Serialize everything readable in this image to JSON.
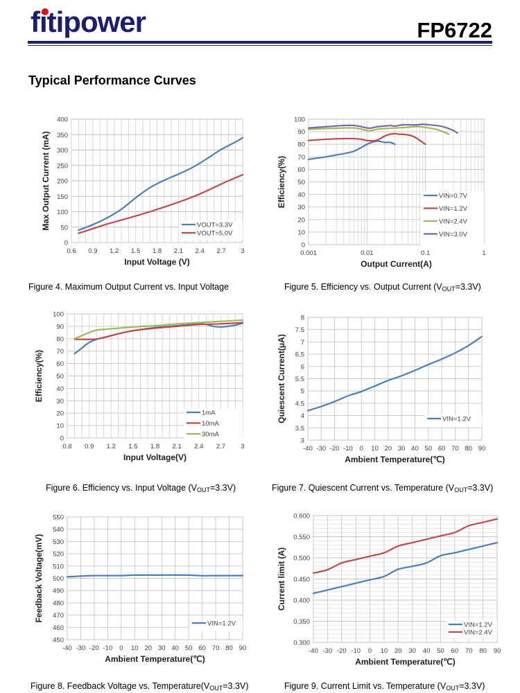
{
  "header": {
    "logo_text": "fitipower",
    "part_number": "FP6722",
    "brand_color": "#1a1e6e",
    "logo_dot_color": "#e0101a"
  },
  "section_title": "Typical Performance Curves",
  "captions": {
    "fig4": {
      "text": "Figure 4. Maximum Output Current vs. Input Voltage"
    },
    "fig5": {
      "pre": "Figure 5. Efficiency vs. Output Current (V",
      "sub": "OUT",
      "post": "=3.3V)"
    },
    "fig6": {
      "pre": "Figure 6. Efficiency vs. Input Voltage (V",
      "sub": "OUT",
      "post": "=3.3V)"
    },
    "fig7": {
      "pre": "Figure 7. Quiescent Current vs.  Temperature (V",
      "sub": "OUT",
      "post": "=3.3V)"
    },
    "fig8": {
      "pre": "Figure 8. Feedback Voltage  vs. Temperature(V",
      "sub": "OUT",
      "post": "=3.3V)"
    },
    "fig9": {
      "pre": "Figure 9. Current Limit vs. Temperature (V",
      "sub": "OUT",
      "post": "=3.3V)"
    }
  },
  "chart_data": [
    {
      "id": "fig4",
      "type": "line",
      "title": "Figure 4. Maximum Output Current vs. Input Voltage",
      "xlabel": "Input Voltage (V)",
      "ylabel": "Max Output Current (mA)",
      "xlim": [
        0.6,
        3.0
      ],
      "ylim": [
        0,
        400
      ],
      "xticks": [
        0.6,
        0.9,
        1.2,
        1.5,
        1.8,
        2.1,
        2.4,
        2.7,
        3.0
      ],
      "xtick_labels": [
        "0.6",
        "0.9",
        "1.2",
        "1.5",
        "1.8",
        "2.1",
        "2.4",
        "2.7",
        "3"
      ],
      "yticks": [
        0,
        50,
        100,
        150,
        200,
        250,
        300,
        350,
        400
      ],
      "xminor": 0.1,
      "grid": true,
      "legend": "bottom-right",
      "series": [
        {
          "name": "VOUT=3.3V",
          "color": "#4a7ebb",
          "x": [
            0.7,
            0.9,
            1.1,
            1.3,
            1.5,
            1.7,
            1.9,
            2.1,
            2.3,
            2.5,
            2.7,
            2.9,
            3.0
          ],
          "y": [
            40,
            58,
            80,
            108,
            145,
            178,
            202,
            222,
            244,
            272,
            302,
            326,
            340
          ]
        },
        {
          "name": "VOUT=5.0V",
          "color": "#be4b48",
          "x": [
            0.7,
            0.9,
            1.1,
            1.3,
            1.5,
            1.7,
            1.9,
            2.1,
            2.3,
            2.5,
            2.7,
            2.9,
            3.0
          ],
          "y": [
            30,
            45,
            60,
            73,
            86,
            100,
            115,
            131,
            148,
            168,
            190,
            210,
            220
          ]
        }
      ]
    },
    {
      "id": "fig5",
      "type": "line",
      "xscale": "log",
      "title": "Figure 5. Efficiency vs. Output Current (VOUT=3.3V)",
      "xlabel": "Output Current(A)",
      "ylabel": "Efficiency(%)",
      "xlim": [
        0.001,
        1
      ],
      "ylim": [
        0,
        100
      ],
      "xticks": [
        0.001,
        0.01,
        0.1,
        1
      ],
      "xtick_labels": [
        "0.001",
        "0.01",
        "0.1",
        "1"
      ],
      "yticks": [
        0,
        10,
        20,
        30,
        40,
        50,
        60,
        70,
        80,
        90,
        100
      ],
      "grid": true,
      "legend": "bottom-right",
      "series": [
        {
          "name": "VIN=0.7V",
          "color": "#4a7ebb",
          "x": [
            0.001,
            0.002,
            0.003,
            0.004,
            0.005,
            0.006,
            0.007,
            0.008,
            0.01,
            0.012,
            0.015,
            0.018,
            0.02,
            0.025,
            0.03
          ],
          "y": [
            68,
            70,
            71.5,
            72.5,
            73.5,
            74.5,
            76,
            77.5,
            80,
            81.5,
            82.5,
            82,
            81.5,
            81.5,
            80
          ]
        },
        {
          "name": "VIN=1.2V",
          "color": "#be4b48",
          "x": [
            0.001,
            0.002,
            0.004,
            0.006,
            0.008,
            0.01,
            0.013,
            0.016,
            0.02,
            0.025,
            0.03,
            0.035,
            0.04,
            0.05,
            0.06,
            0.07,
            0.08,
            0.1
          ],
          "y": [
            83,
            84,
            84.5,
            84.5,
            84,
            83,
            82.8,
            84,
            86.5,
            88,
            88.5,
            88,
            88,
            87.5,
            86.5,
            85,
            83,
            80
          ]
        },
        {
          "name": "VIN=2.4V",
          "color": "#9bbb59",
          "x": [
            0.001,
            0.002,
            0.004,
            0.006,
            0.008,
            0.01,
            0.012,
            0.015,
            0.02,
            0.03,
            0.05,
            0.06,
            0.08,
            0.1,
            0.15,
            0.2,
            0.25
          ],
          "y": [
            92,
            92.5,
            93,
            93,
            92,
            91,
            91,
            92,
            92.5,
            93,
            93.5,
            94,
            94,
            93.5,
            92,
            90,
            88
          ]
        },
        {
          "name": "VIN=3.0V",
          "color": "#8064a2",
          "x": [
            0.001,
            0.002,
            0.004,
            0.006,
            0.008,
            0.01,
            0.012,
            0.015,
            0.02,
            0.025,
            0.03,
            0.04,
            0.05,
            0.07,
            0.09,
            0.1,
            0.15,
            0.2,
            0.3,
            0.35
          ],
          "y": [
            93,
            94,
            95,
            95,
            94,
            93,
            93,
            94,
            94.5,
            95,
            94.5,
            95.5,
            95.5,
            95.5,
            96,
            95.8,
            95,
            94,
            91,
            89
          ]
        }
      ]
    },
    {
      "id": "fig6",
      "type": "line",
      "title": "Figure 6. Efficiency vs. Input Voltage (VOUT=3.3V)",
      "xlabel": "Input Voltage(V)",
      "ylabel": "Efficiency(%)",
      "xlim": [
        0.6,
        3.0
      ],
      "ylim": [
        0,
        100
      ],
      "xticks": [
        0.6,
        0.9,
        1.2,
        1.5,
        1.8,
        2.1,
        2.4,
        2.7,
        3.0
      ],
      "xtick_labels": [
        "0.6",
        "0.9",
        "1.2",
        "1.5",
        "1.8",
        "2.1",
        "2.4",
        "2.7",
        "3"
      ],
      "yticks": [
        0,
        10,
        20,
        30,
        40,
        50,
        60,
        70,
        80,
        90,
        100
      ],
      "xminor": 0.1,
      "grid": true,
      "legend": "bottom-right",
      "series": [
        {
          "name": "1mA",
          "color": "#4a7ebb",
          "x": [
            0.7,
            0.8,
            0.9,
            1.0,
            1.1,
            1.3,
            1.5,
            1.8,
            2.1,
            2.4,
            2.5,
            2.6,
            2.7,
            2.8,
            2.9,
            3.0
          ],
          "y": [
            68,
            72.5,
            77,
            79.5,
            81,
            84,
            86.5,
            89,
            90.5,
            92,
            91.5,
            90,
            89.5,
            90,
            91,
            92.5
          ]
        },
        {
          "name": "10mA",
          "color": "#be4b48",
          "x": [
            0.7,
            0.8,
            0.9,
            1.0,
            1.1,
            1.3,
            1.5,
            1.8,
            2.1,
            2.4,
            2.7,
            3.0
          ],
          "y": [
            79.5,
            79.5,
            79.5,
            79.8,
            81,
            84,
            86.5,
            88.5,
            90,
            91.5,
            92,
            93
          ]
        },
        {
          "name": "30mA",
          "color": "#9bbb59",
          "x": [
            0.7,
            0.8,
            0.9,
            1.0,
            1.1,
            1.3,
            1.5,
            1.8,
            2.1,
            2.4,
            2.7,
            3.0
          ],
          "y": [
            80,
            82.5,
            85,
            87,
            87.5,
            88.5,
            89.5,
            90.5,
            92,
            93,
            94,
            95
          ]
        }
      ]
    },
    {
      "id": "fig7",
      "type": "line",
      "title": "Figure 7. Quiescent Current vs. Temperature (VOUT=3.3V)",
      "xlabel": "Ambient Temperature(℃)",
      "ylabel": "Quiescent Current(μA)",
      "xlim": [
        -40,
        90
      ],
      "ylim": [
        3,
        8
      ],
      "xticks": [
        -40,
        -30,
        -20,
        -10,
        0,
        10,
        20,
        30,
        40,
        50,
        60,
        70,
        80,
        90
      ],
      "xtick_labels": [
        "-40",
        "-30",
        "-20",
        "-10",
        "0",
        "10",
        "20",
        "30",
        "40",
        "50",
        "60",
        "70",
        "80",
        "90"
      ],
      "yticks": [
        3,
        3.5,
        4,
        4.5,
        5,
        5.5,
        6,
        6.5,
        7,
        7.5,
        8
      ],
      "ytick_labels": [
        "3",
        "3.5",
        "4",
        "4.5",
        "5",
        "5.5",
        "6",
        "6.5",
        "7",
        "7.5",
        "8"
      ],
      "grid": true,
      "legend": "bottom-right",
      "series": [
        {
          "name": "VIN=1.2V",
          "color": "#4a7ebb",
          "x": [
            -40,
            -30,
            -20,
            -10,
            0,
            10,
            20,
            30,
            40,
            50,
            60,
            70,
            80,
            90
          ],
          "y": [
            4.2,
            4.37,
            4.57,
            4.8,
            4.98,
            5.2,
            5.43,
            5.62,
            5.84,
            6.08,
            6.3,
            6.55,
            6.85,
            7.22
          ]
        }
      ]
    },
    {
      "id": "fig8",
      "type": "line",
      "title": "Figure 8. Feedback Voltage vs. Temperature(VOUT=3.3V)",
      "xlabel": "Ambient Temperature(℃)",
      "ylabel": "Feedback Voltage(mV)",
      "xlim": [
        -40,
        90
      ],
      "ylim": [
        450,
        550
      ],
      "xticks": [
        -40,
        -30,
        -20,
        -10,
        0,
        10,
        20,
        30,
        40,
        50,
        60,
        70,
        80,
        90
      ],
      "xtick_labels": [
        "-40",
        "-30",
        "-20",
        "-10",
        "0",
        "10",
        "20",
        "30",
        "40",
        "50",
        "60",
        "70",
        "80",
        "90"
      ],
      "yticks": [
        450,
        460,
        470,
        480,
        490,
        500,
        510,
        520,
        530,
        540,
        550
      ],
      "grid": true,
      "legend": "bottom-right",
      "series": [
        {
          "name": "VIN=1.2V",
          "color": "#4a7ebb",
          "x": [
            -40,
            -30,
            -20,
            -10,
            0,
            10,
            20,
            30,
            40,
            50,
            60,
            70,
            80,
            90
          ],
          "y": [
            501.2,
            501.8,
            502.2,
            502.2,
            502.2,
            502.6,
            502.6,
            502.6,
            502.7,
            502.6,
            502.1,
            502.2,
            502.2,
            502.2
          ]
        }
      ]
    },
    {
      "id": "fig9",
      "type": "line",
      "title": "Figure 9. Current Limit vs. Temperature (VOUT=3.3V)",
      "xlabel": "Ambient Temperature(℃)",
      "ylabel": "Current limit (A)",
      "xlim": [
        -40,
        90
      ],
      "ylim": [
        0.3,
        0.6
      ],
      "xticks": [
        -40,
        -30,
        -20,
        -10,
        0,
        10,
        20,
        30,
        40,
        50,
        60,
        70,
        80,
        90
      ],
      "xtick_labels": [
        "-40",
        "-30",
        "-20",
        "-10",
        "0",
        "10",
        "20",
        "30",
        "40",
        "50",
        "60",
        "70",
        "80",
        "90"
      ],
      "yticks": [
        0.3,
        0.35,
        0.4,
        0.45,
        0.5,
        0.55,
        0.6
      ],
      "ytick_labels": [
        "0.300",
        "0.350",
        "0.400",
        "0.450",
        "0.500",
        "0.550",
        "0.600"
      ],
      "yminor": 0.01,
      "grid": true,
      "legend": "bottom-right",
      "series": [
        {
          "name": "VIN=1.2V",
          "color": "#4a7ebb",
          "x": [
            -40,
            -30,
            -20,
            -10,
            0,
            10,
            20,
            30,
            40,
            50,
            60,
            70,
            80,
            90
          ],
          "y": [
            0.416,
            0.424,
            0.432,
            0.44,
            0.448,
            0.456,
            0.473,
            0.48,
            0.488,
            0.505,
            0.512,
            0.52,
            0.528,
            0.536
          ]
        },
        {
          "name": "VIN=2.4V",
          "color": "#be4b48",
          "x": [
            -40,
            -30,
            -20,
            -10,
            0,
            10,
            20,
            30,
            40,
            50,
            60,
            70,
            80,
            90
          ],
          "y": [
            0.464,
            0.472,
            0.488,
            0.496,
            0.504,
            0.512,
            0.528,
            0.536,
            0.544,
            0.552,
            0.56,
            0.576,
            0.584,
            0.592
          ]
        }
      ]
    }
  ]
}
